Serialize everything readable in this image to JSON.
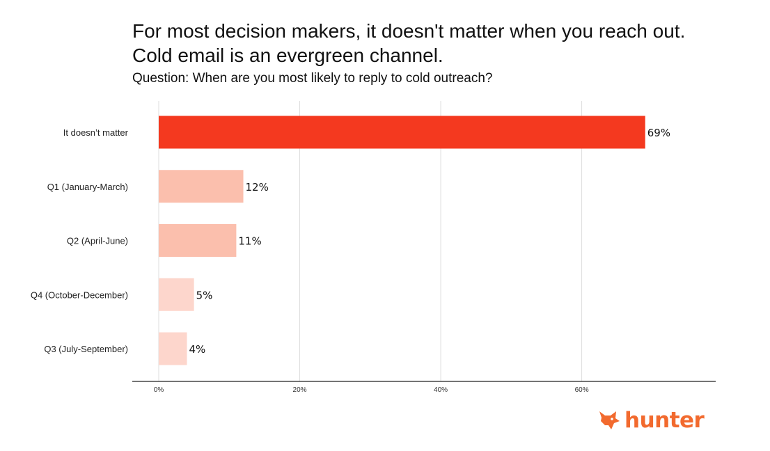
{
  "title_lines": [
    "For most decision makers, it doesn't matter when you reach out.",
    "Cold email is an evergreen channel."
  ],
  "subtitle": "Question: When are you most likely to reply to cold outreach?",
  "logo": {
    "text": "hunter",
    "icon": "fox-head-icon",
    "color": "#f26a2e"
  },
  "colors": {
    "highlight": "#f4391f",
    "mid": "#fbbfad",
    "light": "#fdd6cc",
    "grid": "#dddddd",
    "axis": "#222222"
  },
  "chart_data": {
    "type": "bar",
    "orientation": "horizontal",
    "categories": [
      "It doesn’t matter",
      "Q1 (January-March)",
      "Q2 (April-June)",
      "Q4 (October-December)",
      "Q3 (July-September)"
    ],
    "values": [
      69,
      12,
      11,
      5,
      4
    ],
    "value_labels": [
      "69%",
      "12%",
      "11%",
      "5%",
      "4%"
    ],
    "bar_colors": [
      "#f4391f",
      "#fbbfad",
      "#fbbfad",
      "#fdd6cc",
      "#fdd6cc"
    ],
    "xticks": [
      0,
      20,
      40,
      60
    ],
    "xtick_labels": [
      "0%",
      "20%",
      "40%",
      "60%"
    ],
    "xlim": [
      0,
      79
    ],
    "grid": true,
    "title": "",
    "xlabel": "",
    "ylabel": ""
  }
}
